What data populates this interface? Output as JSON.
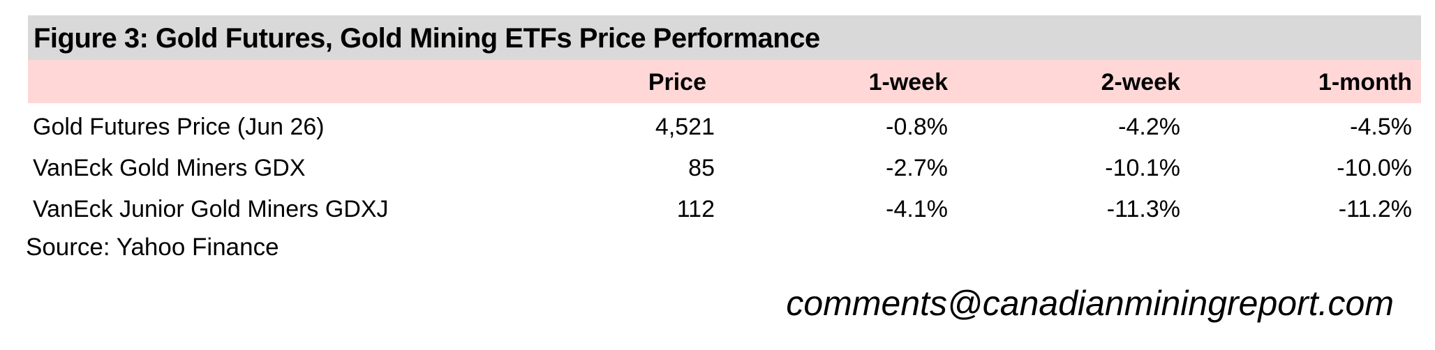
{
  "title": "Figure 3: Gold Futures, Gold Mining ETFs Price Performance",
  "table": {
    "columns": [
      "",
      "Price",
      "1-week",
      "2-week",
      "1-month"
    ],
    "rows": [
      [
        "Gold Futures Price (Jun 26)",
        "4,521",
        "-0.8%",
        "-4.2%",
        "-4.5%"
      ],
      [
        "VanEck Gold Miners GDX",
        "85",
        "-2.7%",
        "-10.1%",
        "-10.0%"
      ],
      [
        "VanEck Junior Gold Miners GDXJ",
        "112",
        "-4.1%",
        "-11.3%",
        "-11.2%"
      ]
    ]
  },
  "source": "Source: Yahoo Finance",
  "contact": "comments@canadianminingreport.com"
}
